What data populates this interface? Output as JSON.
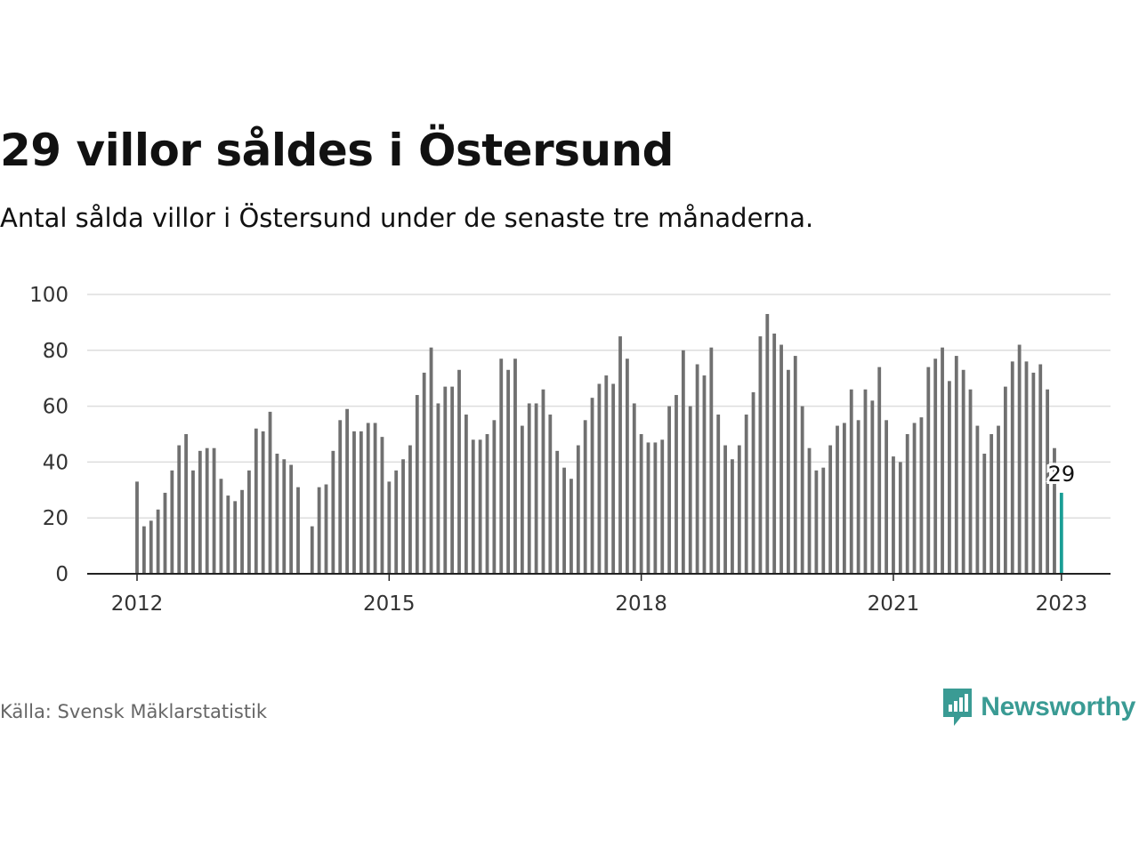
{
  "title": "29 villor såldes i Östersund",
  "subtitle": "Antal sålda villor i Östersund under de senaste tre månaderna.",
  "source": "Källa: Svensk Mäklarstatistik",
  "brand": {
    "name": "Newsworthy",
    "color": "#3a9b94",
    "icon": "newsworthy-chart-bubble-icon"
  },
  "colors": {
    "bar": "#707070",
    "highlight": "#1a9e96",
    "grid": "#dddddd",
    "axis": "#222222",
    "tick_text": "#333333"
  },
  "chart_data": {
    "type": "bar",
    "title": "29 villor såldes i Östersund",
    "subtitle": "Antal sålda villor i Östersund under de senaste tre månaderna.",
    "xlabel": "",
    "ylabel": "",
    "ylim": [
      0,
      100
    ],
    "yticks": [
      "0",
      "20",
      "40",
      "60",
      "80",
      "100"
    ],
    "x_start": "2012-01",
    "x_ticks": [
      {
        "label": "2012",
        "index": 0
      },
      {
        "label": "2015",
        "index": 36
      },
      {
        "label": "2018",
        "index": 72
      },
      {
        "label": "2021",
        "index": 108
      },
      {
        "label": "2023",
        "index": 132
      }
    ],
    "grid": true,
    "legend": "none",
    "highlight": {
      "index": 132,
      "label": "29"
    },
    "values": [
      33,
      17,
      19,
      23,
      29,
      37,
      46,
      50,
      37,
      44,
      45,
      45,
      34,
      28,
      26,
      30,
      37,
      52,
      51,
      58,
      43,
      41,
      39,
      31,
      null,
      17,
      31,
      32,
      44,
      55,
      59,
      51,
      51,
      54,
      54,
      49,
      33,
      37,
      41,
      46,
      64,
      72,
      81,
      61,
      67,
      67,
      73,
      57,
      48,
      48,
      50,
      55,
      77,
      73,
      77,
      53,
      61,
      61,
      66,
      57,
      44,
      38,
      34,
      46,
      55,
      63,
      68,
      71,
      68,
      85,
      77,
      61,
      50,
      47,
      47,
      48,
      60,
      64,
      80,
      60,
      75,
      71,
      81,
      57,
      46,
      41,
      46,
      57,
      65,
      85,
      93,
      86,
      82,
      73,
      78,
      60,
      45,
      37,
      38,
      46,
      53,
      54,
      66,
      55,
      66,
      62,
      74,
      55,
      42,
      40,
      50,
      54,
      56,
      74,
      77,
      81,
      69,
      78,
      73,
      66,
      53,
      43,
      50,
      53,
      67,
      76,
      82,
      76,
      72,
      75,
      66,
      45,
      29
    ]
  }
}
